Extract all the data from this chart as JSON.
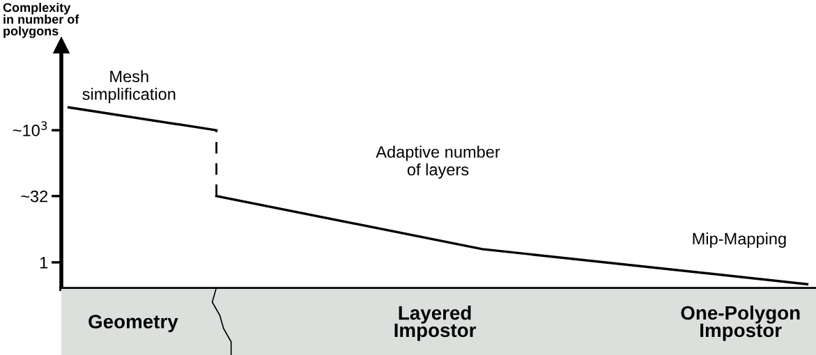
{
  "chart_data": {
    "type": "line",
    "ylabel": "Complexity\nin number of\npolygons",
    "log": "y",
    "ylim": [
      0.25,
      85000
    ],
    "categories": [
      null,
      null,
      null,
      null,
      null,
      null,
      null,
      null,
      null,
      null,
      null,
      null,
      null,
      null,
      null,
      null,
      null,
      null,
      null,
      null,
      null,
      null,
      null,
      null,
      null,
      null,
      null,
      null,
      null,
      null,
      null,
      null,
      null,
      null,
      null,
      null,
      null,
      null,
      null,
      null,
      null,
      null,
      null,
      null,
      null,
      null,
      null,
      null,
      null,
      null,
      null
    ],
    "yticks": [
      {
        "value": 1,
        "label": "1"
      },
      {
        "value": 32,
        "label": "~32"
      },
      {
        "value": 1000,
        "label": "~10$^{3}$"
      }
    ],
    "tick_labels": "y",
    "grid": false,
    "marker": "none",
    "series": [
      {
        "color": "#000000",
        "line_style": "solid",
        "values": [
          3300,
          null,
          null,
          null,
          null,
          null,
          null,
          null,
          null,
          null,
          1000,
          null,
          null,
          null,
          null,
          null,
          null,
          null,
          null,
          null,
          null,
          null,
          null,
          null,
          null,
          null,
          null,
          null,
          null,
          null,
          null,
          null,
          null,
          null,
          null,
          null,
          null,
          null,
          null,
          null,
          null,
          null,
          null,
          null,
          null,
          null,
          null,
          null,
          null,
          null,
          null
        ]
      },
      {
        "color": "#000000",
        "line_style": "solid",
        "values": [
          null,
          null,
          null,
          null,
          null,
          null,
          null,
          null,
          null,
          null,
          32,
          null,
          null,
          null,
          null,
          null,
          null,
          null,
          null,
          null,
          null,
          null,
          null,
          null,
          null,
          null,
          null,
          null,
          2,
          null,
          null,
          null,
          null,
          null,
          null,
          null,
          null,
          null,
          null,
          null,
          null,
          null,
          null,
          null,
          null,
          null,
          null,
          null,
          null,
          null,
          0.32
        ],
        "errors": [
          null,
          null,
          null,
          null,
          null,
          null,
          null,
          null,
          null,
          null,
          [
            32,
            1000
          ],
          null,
          null,
          null,
          null,
          null,
          null,
          null,
          null,
          null,
          null,
          null,
          null,
          null,
          null,
          null,
          null,
          null,
          null,
          null,
          null,
          null,
          null,
          null,
          null,
          null,
          null,
          null,
          null,
          null,
          null,
          null,
          null,
          null,
          null,
          null,
          null,
          null,
          null,
          null,
          null
        ]
      }
    ],
    "annotations": [
      "Mesh\nsimplification",
      "Adaptive number\nof layers",
      "Mip-Mapping",
      "Geometry",
      "Layered\nImpostor",
      "One-Polygon\nImpostor"
    ]
  }
}
